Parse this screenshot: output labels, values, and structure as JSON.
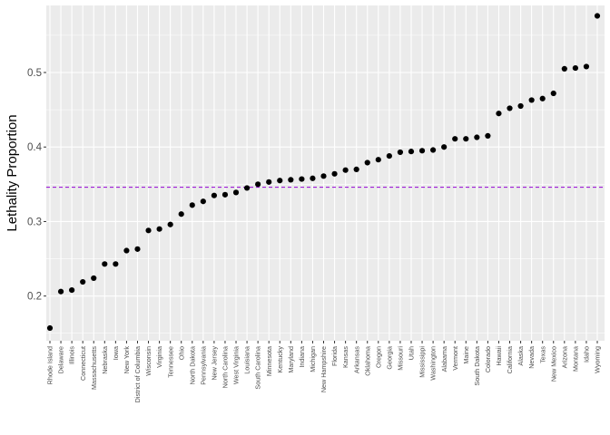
{
  "chart_data": {
    "type": "scatter",
    "title": "",
    "xlabel": "",
    "ylabel": "Lethality Proportion",
    "ylim": [
      0.14,
      0.59
    ],
    "yticks": [
      0.2,
      0.3,
      0.4,
      0.5
    ],
    "ytick_labels": [
      "0.2",
      "0.3",
      "0.4",
      "0.5"
    ],
    "grid": true,
    "legend": "none",
    "reference_line": {
      "y": 0.346,
      "style": "dashed",
      "color": "#9400D3"
    },
    "colors": {
      "panel": "#EBEBEB",
      "grid": "#FFFFFF",
      "point": "#000000"
    },
    "categories": [
      "Rhode Island",
      "Delaware",
      "Illinois",
      "Connecticut",
      "Massachusetts",
      "Nebraska",
      "Iowa",
      "New York",
      "District of Columbia",
      "Wisconsin",
      "Virginia",
      "Tennessee",
      "Ohio",
      "North Dakota",
      "Pennsylvania",
      "New Jersey",
      "North Carolina",
      "West Virginia",
      "Louisiana",
      "South Carolina",
      "Minnesota",
      "Kentucky",
      "Maryland",
      "Indiana",
      "Michigan",
      "New Hampshire",
      "Florida",
      "Kansas",
      "Arkansas",
      "Oklahoma",
      "Oregon",
      "Georgia",
      "Missouri",
      "Utah",
      "Mississippi",
      "Washington",
      "Alabama",
      "Vermont",
      "Maine",
      "South Dakota",
      "Colorado",
      "Hawaii",
      "California",
      "Alaska",
      "Nevada",
      "Texas",
      "New Mexico",
      "Arizona",
      "Montana",
      "Idaho",
      "Wyoming"
    ],
    "values": [
      0.157,
      0.206,
      0.208,
      0.219,
      0.224,
      0.243,
      0.243,
      0.261,
      0.263,
      0.288,
      0.29,
      0.296,
      0.31,
      0.322,
      0.327,
      0.335,
      0.336,
      0.339,
      0.345,
      0.35,
      0.353,
      0.355,
      0.356,
      0.357,
      0.358,
      0.361,
      0.364,
      0.369,
      0.37,
      0.379,
      0.383,
      0.388,
      0.393,
      0.394,
      0.395,
      0.396,
      0.4,
      0.411,
      0.411,
      0.413,
      0.415,
      0.445,
      0.452,
      0.455,
      0.463,
      0.465,
      0.472,
      0.505,
      0.506,
      0.508,
      0.576
    ]
  }
}
